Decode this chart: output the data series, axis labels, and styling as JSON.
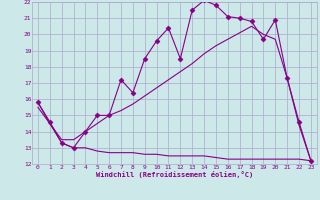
{
  "xlabel": "Windchill (Refroidissement éolien,°C)",
  "background_color": "#cce8e8",
  "grid_color": "#aaaacc",
  "line_color": "#880088",
  "xlim": [
    -0.5,
    23.5
  ],
  "ylim": [
    12,
    22
  ],
  "xticks": [
    0,
    1,
    2,
    3,
    4,
    5,
    6,
    7,
    8,
    9,
    10,
    11,
    12,
    13,
    14,
    15,
    16,
    17,
    18,
    19,
    20,
    21,
    22,
    23
  ],
  "yticks": [
    12,
    13,
    14,
    15,
    16,
    17,
    18,
    19,
    20,
    21,
    22
  ],
  "line1_x": [
    0,
    1,
    2,
    3,
    4,
    5,
    6,
    7,
    8,
    9,
    10,
    11,
    12,
    13,
    14,
    15,
    16,
    17,
    18,
    19,
    20,
    21,
    22,
    23
  ],
  "line1_y": [
    15.8,
    14.6,
    13.3,
    13.0,
    14.0,
    15.0,
    15.0,
    17.2,
    16.4,
    18.5,
    19.6,
    20.4,
    18.5,
    21.5,
    22.1,
    21.8,
    21.1,
    21.0,
    20.8,
    19.7,
    20.9,
    17.3,
    14.6,
    12.2
  ],
  "line2_x": [
    0,
    1,
    2,
    3,
    4,
    5,
    6,
    7,
    8,
    9,
    10,
    11,
    12,
    13,
    14,
    15,
    16,
    17,
    18,
    19,
    20,
    21,
    22,
    23
  ],
  "line2_y": [
    15.5,
    14.5,
    13.5,
    13.5,
    14.0,
    14.5,
    15.0,
    15.3,
    15.7,
    16.2,
    16.7,
    17.2,
    17.7,
    18.2,
    18.8,
    19.3,
    19.7,
    20.1,
    20.5,
    20.0,
    19.7,
    17.3,
    14.4,
    12.2
  ],
  "line3_x": [
    0,
    1,
    2,
    3,
    4,
    5,
    6,
    7,
    8,
    9,
    10,
    11,
    12,
    13,
    14,
    15,
    16,
    17,
    18,
    19,
    20,
    21,
    22,
    23
  ],
  "line3_y": [
    15.8,
    14.5,
    13.3,
    13.0,
    13.0,
    12.8,
    12.7,
    12.7,
    12.7,
    12.6,
    12.6,
    12.5,
    12.5,
    12.5,
    12.5,
    12.4,
    12.3,
    12.3,
    12.3,
    12.3,
    12.3,
    12.3,
    12.3,
    12.2
  ]
}
